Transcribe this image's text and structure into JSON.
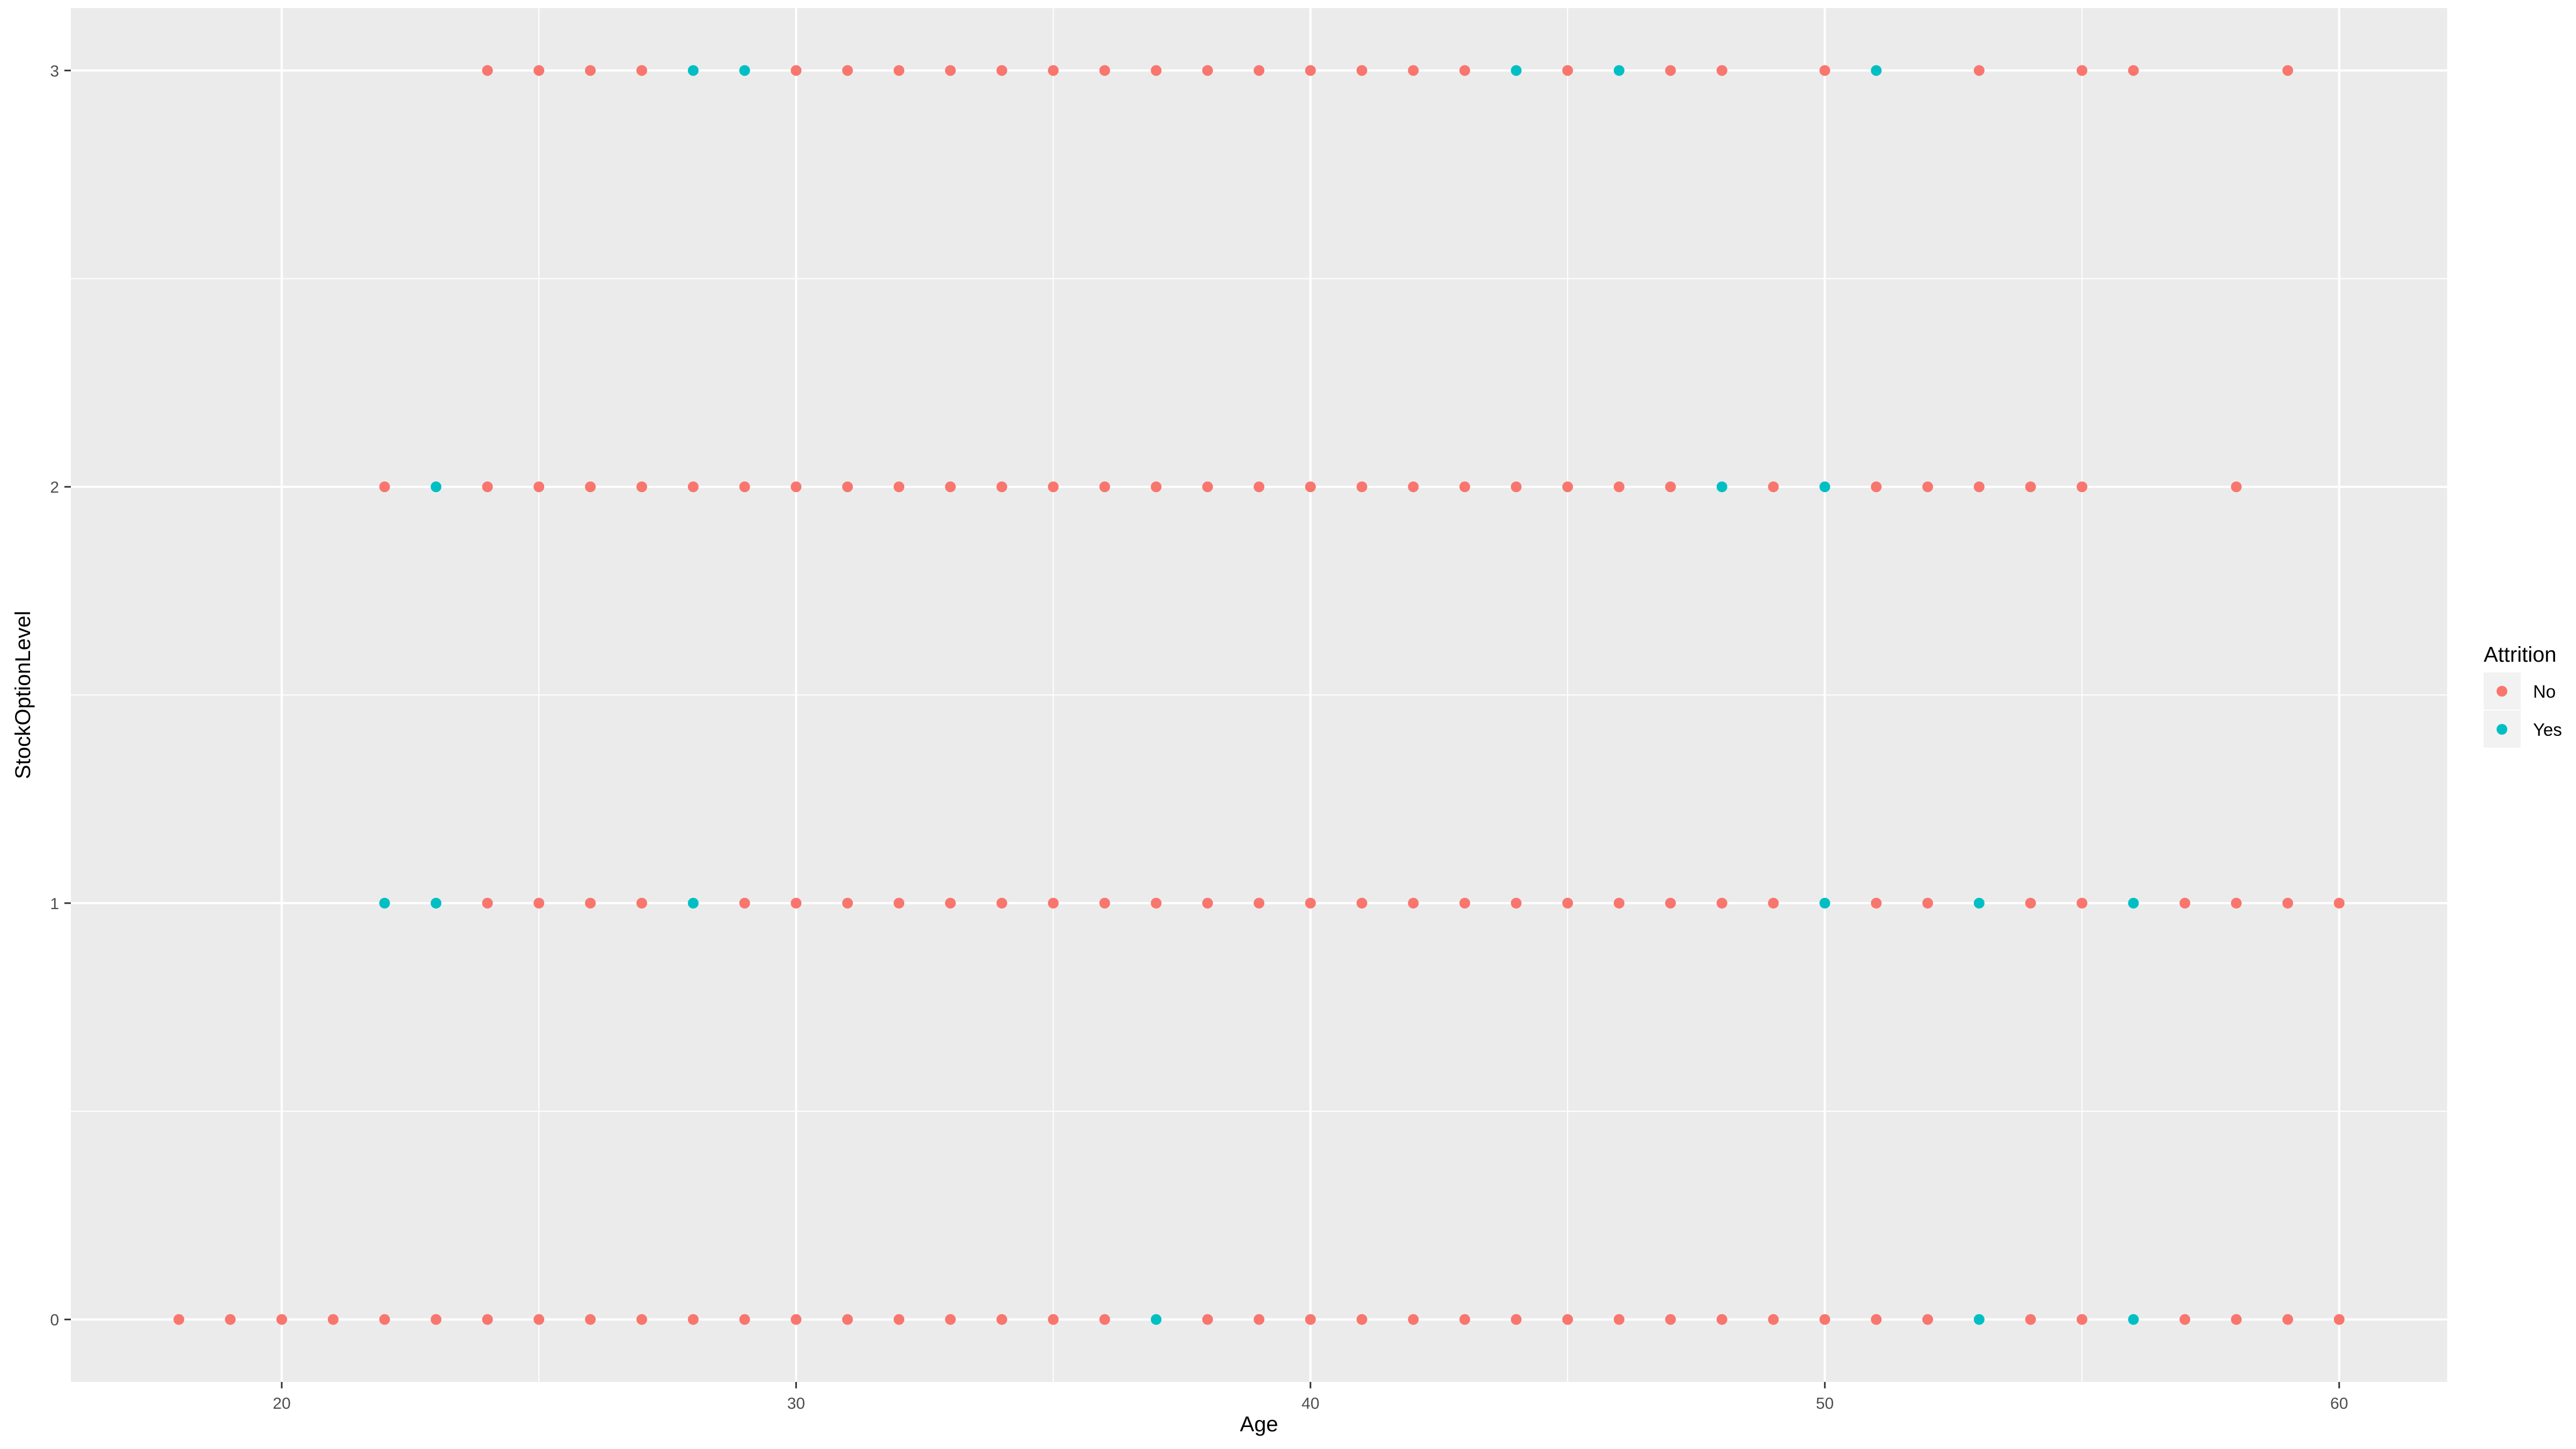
{
  "chart_data": {
    "type": "scatter",
    "title": "",
    "xlabel": "Age",
    "ylabel": "StockOptionLevel",
    "xlim": [
      15.9,
      62.1
    ],
    "ylim": [
      -0.15,
      3.15
    ],
    "x_ticks": [
      20,
      30,
      40,
      50,
      60
    ],
    "y_ticks": [
      0,
      1,
      2,
      3
    ],
    "grid": true,
    "legend": {
      "title": "Attrition",
      "position": "right"
    },
    "colors": {
      "No": "#F8766D",
      "Yes": "#00BFC4",
      "panel": "#EBEBEB",
      "grid": "#FFFFFF"
    },
    "series": [
      {
        "name": "No",
        "points": [
          [
            18,
            0
          ],
          [
            19,
            0
          ],
          [
            20,
            0
          ],
          [
            21,
            0
          ],
          [
            22,
            0
          ],
          [
            23,
            0
          ],
          [
            24,
            0
          ],
          [
            25,
            0
          ],
          [
            26,
            0
          ],
          [
            27,
            0
          ],
          [
            28,
            0
          ],
          [
            29,
            0
          ],
          [
            30,
            0
          ],
          [
            31,
            0
          ],
          [
            32,
            0
          ],
          [
            33,
            0
          ],
          [
            34,
            0
          ],
          [
            35,
            0
          ],
          [
            36,
            0
          ],
          [
            38,
            0
          ],
          [
            39,
            0
          ],
          [
            40,
            0
          ],
          [
            41,
            0
          ],
          [
            42,
            0
          ],
          [
            43,
            0
          ],
          [
            44,
            0
          ],
          [
            45,
            0
          ],
          [
            46,
            0
          ],
          [
            47,
            0
          ],
          [
            48,
            0
          ],
          [
            49,
            0
          ],
          [
            50,
            0
          ],
          [
            51,
            0
          ],
          [
            52,
            0
          ],
          [
            54,
            0
          ],
          [
            55,
            0
          ],
          [
            57,
            0
          ],
          [
            58,
            0
          ],
          [
            59,
            0
          ],
          [
            60,
            0
          ],
          [
            24,
            1
          ],
          [
            25,
            1
          ],
          [
            26,
            1
          ],
          [
            27,
            1
          ],
          [
            29,
            1
          ],
          [
            30,
            1
          ],
          [
            31,
            1
          ],
          [
            32,
            1
          ],
          [
            33,
            1
          ],
          [
            34,
            1
          ],
          [
            35,
            1
          ],
          [
            36,
            1
          ],
          [
            37,
            1
          ],
          [
            38,
            1
          ],
          [
            39,
            1
          ],
          [
            40,
            1
          ],
          [
            41,
            1
          ],
          [
            42,
            1
          ],
          [
            43,
            1
          ],
          [
            44,
            1
          ],
          [
            45,
            1
          ],
          [
            46,
            1
          ],
          [
            47,
            1
          ],
          [
            48,
            1
          ],
          [
            49,
            1
          ],
          [
            51,
            1
          ],
          [
            52,
            1
          ],
          [
            54,
            1
          ],
          [
            55,
            1
          ],
          [
            57,
            1
          ],
          [
            58,
            1
          ],
          [
            59,
            1
          ],
          [
            60,
            1
          ],
          [
            22,
            2
          ],
          [
            24,
            2
          ],
          [
            25,
            2
          ],
          [
            26,
            2
          ],
          [
            27,
            2
          ],
          [
            28,
            2
          ],
          [
            29,
            2
          ],
          [
            30,
            2
          ],
          [
            31,
            2
          ],
          [
            32,
            2
          ],
          [
            33,
            2
          ],
          [
            34,
            2
          ],
          [
            35,
            2
          ],
          [
            36,
            2
          ],
          [
            37,
            2
          ],
          [
            38,
            2
          ],
          [
            39,
            2
          ],
          [
            40,
            2
          ],
          [
            41,
            2
          ],
          [
            42,
            2
          ],
          [
            43,
            2
          ],
          [
            44,
            2
          ],
          [
            45,
            2
          ],
          [
            46,
            2
          ],
          [
            47,
            2
          ],
          [
            49,
            2
          ],
          [
            51,
            2
          ],
          [
            52,
            2
          ],
          [
            53,
            2
          ],
          [
            54,
            2
          ],
          [
            55,
            2
          ],
          [
            58,
            2
          ],
          [
            24,
            3
          ],
          [
            25,
            3
          ],
          [
            26,
            3
          ],
          [
            27,
            3
          ],
          [
            30,
            3
          ],
          [
            31,
            3
          ],
          [
            32,
            3
          ],
          [
            33,
            3
          ],
          [
            34,
            3
          ],
          [
            35,
            3
          ],
          [
            36,
            3
          ],
          [
            37,
            3
          ],
          [
            38,
            3
          ],
          [
            39,
            3
          ],
          [
            40,
            3
          ],
          [
            41,
            3
          ],
          [
            42,
            3
          ],
          [
            43,
            3
          ],
          [
            45,
            3
          ],
          [
            47,
            3
          ],
          [
            48,
            3
          ],
          [
            50,
            3
          ],
          [
            53,
            3
          ],
          [
            55,
            3
          ],
          [
            56,
            3
          ],
          [
            59,
            3
          ]
        ]
      },
      {
        "name": "Yes",
        "points": [
          [
            37,
            0
          ],
          [
            53,
            0
          ],
          [
            56,
            0
          ],
          [
            22,
            1
          ],
          [
            23,
            1
          ],
          [
            28,
            1
          ],
          [
            50,
            1
          ],
          [
            53,
            1
          ],
          [
            56,
            1
          ],
          [
            23,
            2
          ],
          [
            48,
            2
          ],
          [
            50,
            2
          ],
          [
            28,
            3
          ],
          [
            29,
            3
          ],
          [
            44,
            3
          ],
          [
            46,
            3
          ],
          [
            51,
            3
          ]
        ]
      }
    ]
  }
}
